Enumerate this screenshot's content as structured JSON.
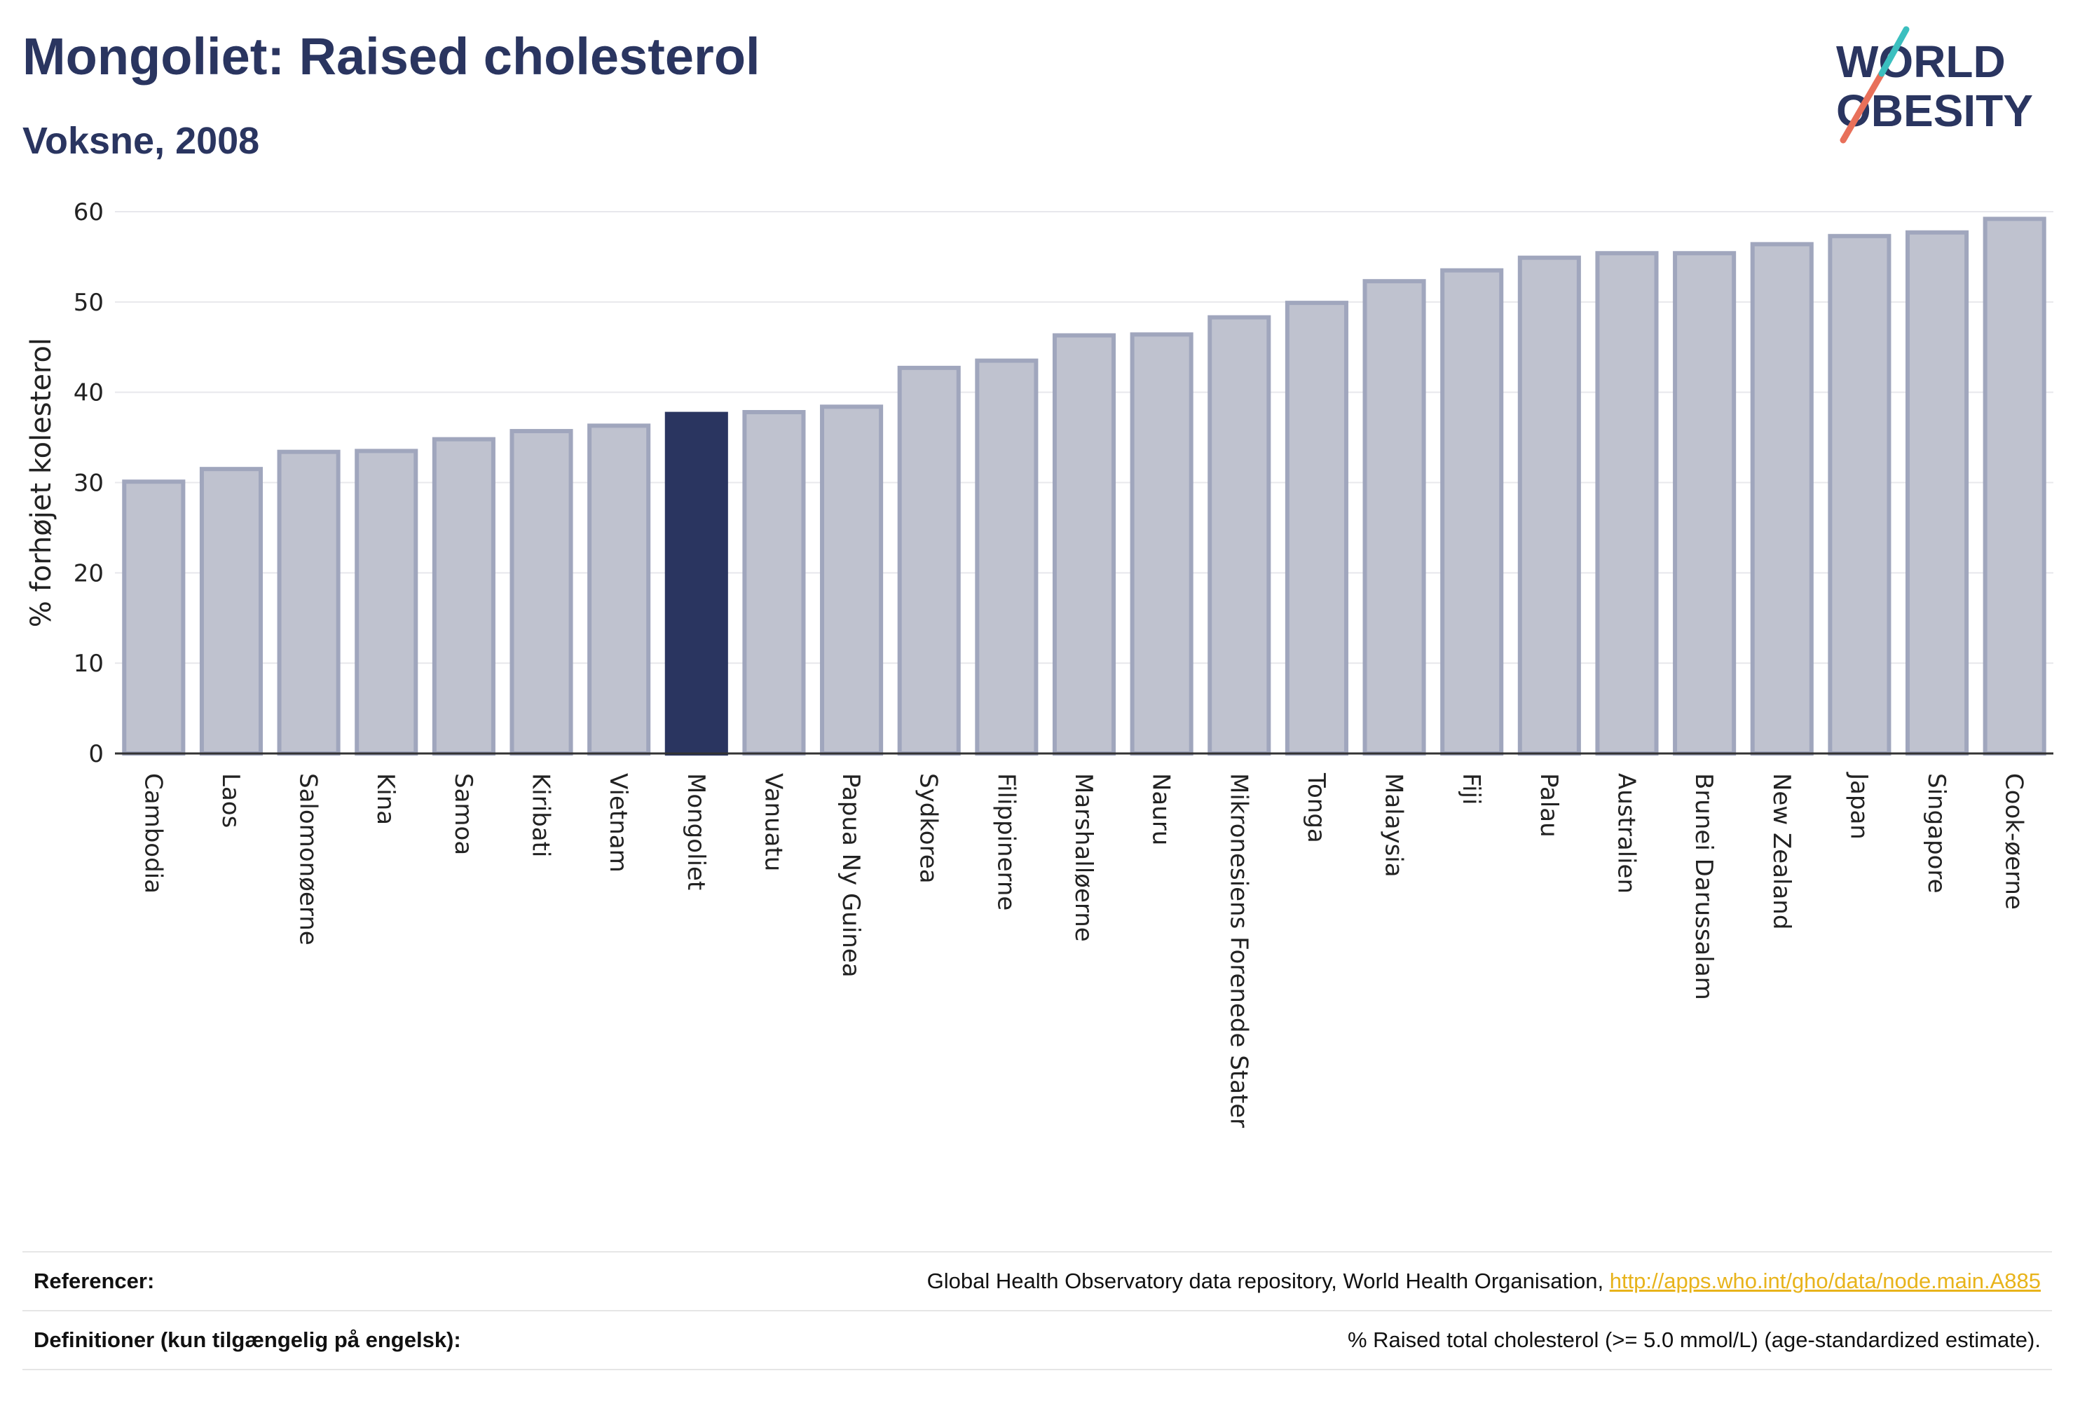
{
  "header": {
    "title": "Mongoliet: Raised cholesterol",
    "subtitle": "Voksne, 2008"
  },
  "logo": {
    "line1": "WORLD",
    "line2": "OBESITY"
  },
  "chart_data": {
    "type": "bar",
    "title": "Mongoliet: Raised cholesterol",
    "subtitle": "Voksne, 2008",
    "xlabel": "",
    "ylabel": "% forhøjet kolesterol",
    "ylim": [
      0,
      60
    ],
    "yticks": [
      0,
      10,
      20,
      30,
      40,
      50,
      60
    ],
    "grid": true,
    "highlight": "Mongoliet",
    "colors": {
      "bar": "#bfc2cf",
      "bar_edge": "#a0a6bd",
      "highlight": "#2a3560"
    },
    "categories": [
      "Cambodia",
      "Laos",
      "Salomonøerne",
      "Kina",
      "Samoa",
      "Kiribati",
      "Vietnam",
      "Mongoliet",
      "Vanuatu",
      "Papua Ny Guinea",
      "Sydkorea",
      "Filippinerne",
      "Marshalløerne",
      "Nauru",
      "Mikronesiens Forenede Stater",
      "Tonga",
      "Malaysia",
      "Fiji",
      "Palau",
      "Australien",
      "Brunei Darussalam",
      "New Zealand",
      "Japan",
      "Singapore",
      "Cook-øerne"
    ],
    "values": [
      30.1,
      31.5,
      33.4,
      33.5,
      34.8,
      35.7,
      36.3,
      37.6,
      37.8,
      38.4,
      42.7,
      43.5,
      46.3,
      46.4,
      48.3,
      49.9,
      52.3,
      53.5,
      54.9,
      55.4,
      55.4,
      56.4,
      57.3,
      57.7,
      59.2
    ]
  },
  "footer": {
    "references_label": "Referencer:",
    "references_text": "Global Health Observatory data repository, World Health Organisation, ",
    "references_link": "http://apps.who.int/gho/data/node.main.A885",
    "definitions_label": "Definitioner (kun tilgængelig på engelsk):",
    "definitions_text": "% Raised total cholesterol (>= 5.0 mmol/L) (age-standardized estimate)."
  }
}
